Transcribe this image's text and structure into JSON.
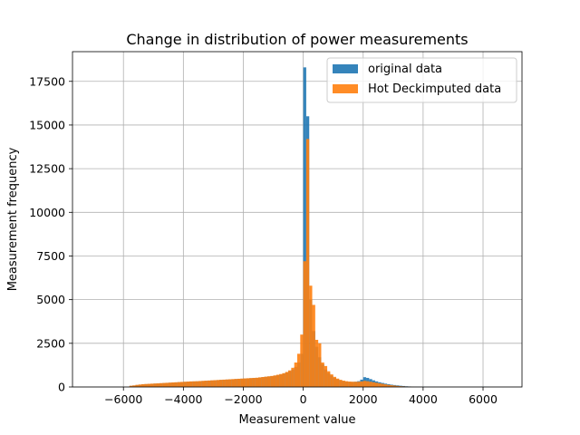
{
  "chart_data": {
    "type": "bar",
    "title": "Change in distribution of power measurements",
    "xlabel": "Measurement value",
    "ylabel": "Measurement frequency",
    "xlim": [
      -7700,
      7300
    ],
    "ylim": [
      0,
      19200
    ],
    "xticks": [
      -6000,
      -4000,
      -2000,
      0,
      2000,
      4000,
      6000
    ],
    "xtick_labels": [
      "−6000",
      "−4000",
      "−2000",
      "0",
      "2000",
      "4000",
      "6000"
    ],
    "yticks": [
      0,
      2500,
      5000,
      7500,
      10000,
      12500,
      15000,
      17500
    ],
    "ytick_labels": [
      "0",
      "2500",
      "5000",
      "7500",
      "10000",
      "12500",
      "15000",
      "17500"
    ],
    "grid": true,
    "legend_position": "top-right",
    "bin_width": 100,
    "series": [
      {
        "name": "original data",
        "color": "#1f77b4",
        "opacity": 0.9,
        "bins": [
          [
            -5800,
            60
          ],
          [
            -5700,
            80
          ],
          [
            -5600,
            110
          ],
          [
            -5500,
            130
          ],
          [
            -5400,
            150
          ],
          [
            -5300,
            160
          ],
          [
            -5200,
            170
          ],
          [
            -5100,
            180
          ],
          [
            -5000,
            190
          ],
          [
            -4900,
            200
          ],
          [
            -4800,
            210
          ],
          [
            -4700,
            220
          ],
          [
            -4600,
            230
          ],
          [
            -4500,
            240
          ],
          [
            -4400,
            250
          ],
          [
            -4300,
            260
          ],
          [
            -4200,
            270
          ],
          [
            -4100,
            280
          ],
          [
            -4000,
            290
          ],
          [
            -3900,
            300
          ],
          [
            -3800,
            310
          ],
          [
            -3700,
            315
          ],
          [
            -3600,
            320
          ],
          [
            -3500,
            330
          ],
          [
            -3400,
            340
          ],
          [
            -3300,
            350
          ],
          [
            -3200,
            360
          ],
          [
            -3100,
            370
          ],
          [
            -3000,
            380
          ],
          [
            -2900,
            390
          ],
          [
            -2800,
            400
          ],
          [
            -2700,
            410
          ],
          [
            -2600,
            420
          ],
          [
            -2500,
            430
          ],
          [
            -2400,
            440
          ],
          [
            -2300,
            450
          ],
          [
            -2200,
            460
          ],
          [
            -2100,
            470
          ],
          [
            -2000,
            480
          ],
          [
            -1900,
            490
          ],
          [
            -1800,
            500
          ],
          [
            -1700,
            510
          ],
          [
            -1600,
            520
          ],
          [
            -1500,
            540
          ],
          [
            -1400,
            560
          ],
          [
            -1300,
            580
          ],
          [
            -1200,
            600
          ],
          [
            -1100,
            620
          ],
          [
            -1000,
            650
          ],
          [
            -900,
            680
          ],
          [
            -800,
            720
          ],
          [
            -700,
            770
          ],
          [
            -600,
            830
          ],
          [
            -500,
            900
          ],
          [
            -400,
            1000
          ],
          [
            -300,
            1150
          ],
          [
            -200,
            1400
          ],
          [
            -100,
            1900
          ],
          [
            0,
            18300
          ],
          [
            100,
            15500
          ],
          [
            200,
            5000
          ],
          [
            300,
            3200
          ],
          [
            400,
            2300
          ],
          [
            500,
            1700
          ],
          [
            600,
            1300
          ],
          [
            700,
            1000
          ],
          [
            800,
            800
          ],
          [
            900,
            650
          ],
          [
            1000,
            520
          ],
          [
            1100,
            440
          ],
          [
            1200,
            380
          ],
          [
            1300,
            340
          ],
          [
            1400,
            310
          ],
          [
            1500,
            290
          ],
          [
            1600,
            290
          ],
          [
            1700,
            300
          ],
          [
            1800,
            330
          ],
          [
            1900,
            420
          ],
          [
            2000,
            560
          ],
          [
            2100,
            520
          ],
          [
            2200,
            450
          ],
          [
            2300,
            380
          ],
          [
            2400,
            320
          ],
          [
            2500,
            270
          ],
          [
            2600,
            230
          ],
          [
            2700,
            190
          ],
          [
            2800,
            160
          ],
          [
            2900,
            130
          ],
          [
            3000,
            110
          ],
          [
            3100,
            90
          ],
          [
            3200,
            70
          ],
          [
            3300,
            55
          ],
          [
            3400,
            40
          ],
          [
            3500,
            30
          ],
          [
            3600,
            22
          ],
          [
            3700,
            16
          ],
          [
            3800,
            12
          ],
          [
            3900,
            8
          ],
          [
            4000,
            6
          ],
          [
            4100,
            4
          ],
          [
            4200,
            3
          ],
          [
            4300,
            2
          ],
          [
            5900,
            10
          ],
          [
            6000,
            8
          ],
          [
            6100,
            5
          ]
        ]
      },
      {
        "name": "Hot Deckimputed data",
        "color": "#ff7f0e",
        "opacity": 0.9,
        "bins": [
          [
            -5800,
            70
          ],
          [
            -5700,
            90
          ],
          [
            -5600,
            120
          ],
          [
            -5500,
            140
          ],
          [
            -5400,
            160
          ],
          [
            -5300,
            170
          ],
          [
            -5200,
            180
          ],
          [
            -5100,
            190
          ],
          [
            -5000,
            200
          ],
          [
            -4900,
            210
          ],
          [
            -4800,
            220
          ],
          [
            -4700,
            230
          ],
          [
            -4600,
            240
          ],
          [
            -4500,
            250
          ],
          [
            -4400,
            260
          ],
          [
            -4300,
            270
          ],
          [
            -4200,
            280
          ],
          [
            -4100,
            290
          ],
          [
            -4000,
            300
          ],
          [
            -3900,
            310
          ],
          [
            -3800,
            320
          ],
          [
            -3700,
            325
          ],
          [
            -3600,
            330
          ],
          [
            -3500,
            340
          ],
          [
            -3400,
            350
          ],
          [
            -3300,
            360
          ],
          [
            -3200,
            370
          ],
          [
            -3100,
            380
          ],
          [
            -3000,
            390
          ],
          [
            -2900,
            400
          ],
          [
            -2800,
            410
          ],
          [
            -2700,
            420
          ],
          [
            -2600,
            430
          ],
          [
            -2500,
            440
          ],
          [
            -2400,
            450
          ],
          [
            -2300,
            460
          ],
          [
            -2200,
            470
          ],
          [
            -2100,
            480
          ],
          [
            -2000,
            490
          ],
          [
            -1900,
            500
          ],
          [
            -1800,
            510
          ],
          [
            -1700,
            520
          ],
          [
            -1600,
            530
          ],
          [
            -1500,
            550
          ],
          [
            -1400,
            570
          ],
          [
            -1300,
            590
          ],
          [
            -1200,
            610
          ],
          [
            -1100,
            630
          ],
          [
            -1000,
            660
          ],
          [
            -900,
            700
          ],
          [
            -800,
            740
          ],
          [
            -700,
            790
          ],
          [
            -600,
            860
          ],
          [
            -500,
            950
          ],
          [
            -400,
            1100
          ],
          [
            -300,
            1400
          ],
          [
            -200,
            1900
          ],
          [
            -100,
            3000
          ],
          [
            0,
            7200
          ],
          [
            100,
            14200
          ],
          [
            200,
            5800
          ],
          [
            300,
            4700
          ],
          [
            400,
            2700
          ],
          [
            500,
            2500
          ],
          [
            600,
            1400
          ],
          [
            700,
            1200
          ],
          [
            800,
            900
          ],
          [
            900,
            720
          ],
          [
            1000,
            580
          ],
          [
            1100,
            480
          ],
          [
            1200,
            410
          ],
          [
            1300,
            360
          ],
          [
            1400,
            330
          ],
          [
            1500,
            310
          ],
          [
            1600,
            300
          ],
          [
            1700,
            300
          ],
          [
            1800,
            300
          ],
          [
            1900,
            320
          ],
          [
            2000,
            350
          ],
          [
            2100,
            330
          ],
          [
            2200,
            300
          ],
          [
            2300,
            270
          ],
          [
            2400,
            240
          ],
          [
            2500,
            210
          ],
          [
            2600,
            180
          ],
          [
            2700,
            150
          ],
          [
            2800,
            120
          ],
          [
            2900,
            100
          ],
          [
            3000,
            80
          ],
          [
            3100,
            60
          ],
          [
            3200,
            45
          ],
          [
            3300,
            35
          ],
          [
            3400,
            25
          ],
          [
            3500,
            18
          ],
          [
            3600,
            12
          ],
          [
            3700,
            8
          ],
          [
            3800,
            5
          ],
          [
            3900,
            3
          ]
        ]
      }
    ]
  }
}
